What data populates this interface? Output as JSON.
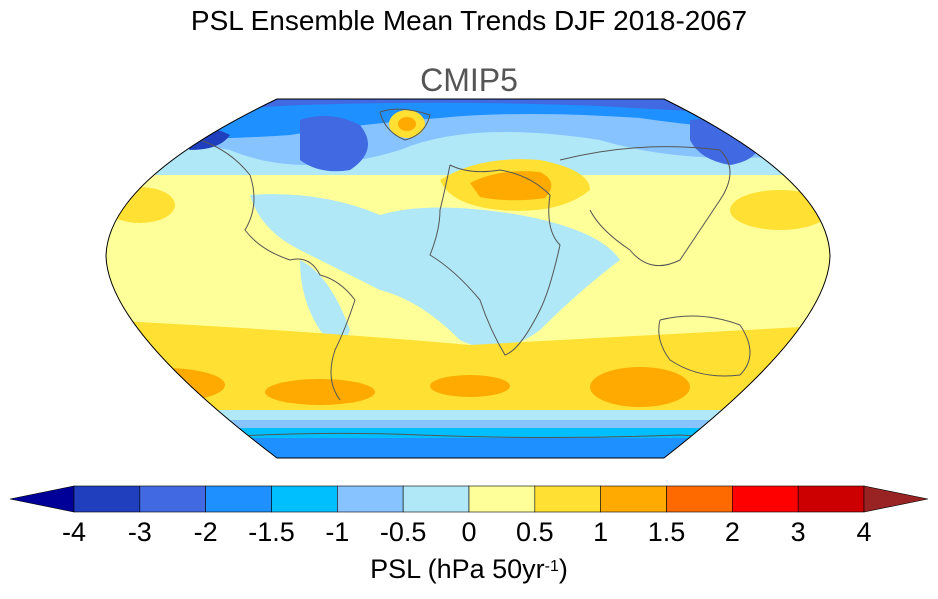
{
  "title": "PSL Ensemble Mean Trends DJF 2018-2067",
  "subtitle": "CMIP5",
  "colorbar": {
    "label_main": "PSL (hPa 50yr",
    "label_sup": "-1",
    "label_end": ")",
    "ticks": [
      "-4",
      "-3",
      "-2",
      "-1.5",
      "-1",
      "-0.5",
      "0",
      "0.5",
      "1",
      "1.5",
      "2",
      "3",
      "4"
    ],
    "colors": [
      "#000099",
      "#1f3fbf",
      "#4169e1",
      "#1e90ff",
      "#00bfff",
      "#87c4ff",
      "#b0e8f8",
      "#ffff99",
      "#ffe033",
      "#ffaa00",
      "#ff6a00",
      "#ff0000",
      "#cc0000",
      "#992222"
    ]
  },
  "map": {
    "projection": "robinson",
    "field_description": "sea level pressure trend",
    "colors": {
      "ocean_base": "#ffff99",
      "pos_1": "#ffe033",
      "pos_2": "#ffaa00",
      "pos_3": "#ff6a00",
      "neg_1": "#b0e8f8",
      "neg_2": "#87c4ff",
      "neg_3": "#00bfff",
      "neg_4": "#1e90ff",
      "neg_5": "#4169e1",
      "neg_6": "#1f3fbf",
      "coast": "#555555"
    }
  }
}
